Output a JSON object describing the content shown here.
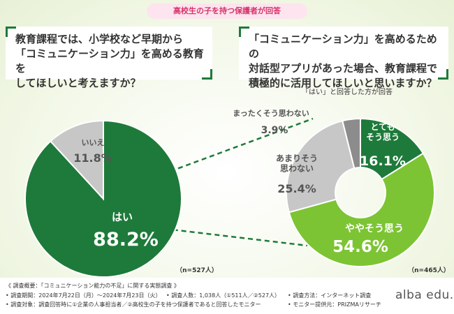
{
  "banner": "高校生の子を持つ保護者が回答",
  "q1": "教育課程では、小学校など早期から\n「コミュニケーション力」を高める教育を\nしてほしいと考えますか？",
  "q2": "「コミュニケーション力」を高めるための\n対話型アプリがあった場合、教育課程で\n積極的に活用してほしいと思いますか？",
  "subnote": "「はい」と回答した方が回答",
  "colors": {
    "dark_green": "#1e7a3a",
    "light_green": "#7cc433",
    "gray": "#c7c7c7",
    "dark_gray": "#8c8c8c",
    "banner_text": "#d6336c"
  },
  "chart_data": [
    {
      "type": "pie",
      "title": "教育課程では、小学校など早期から「コミュニケーション力」を高める教育をしてほしいと考えますか？",
      "n_label": "（n=527人）",
      "slices": [
        {
          "label": "はい",
          "value": 88.2,
          "display": "88.2%"
        },
        {
          "label": "いいえ",
          "value": 11.8,
          "display": "11.8%"
        }
      ]
    },
    {
      "type": "pie",
      "variant": "donut",
      "title": "「コミュニケーション力」を高めるための対話型アプリがあった場合、教育課程で積極的に活用してほしいと思いますか？",
      "n_label": "（n=465人）",
      "slices": [
        {
          "label": "とても\nそう思う",
          "value": 16.1,
          "display": "16.1%"
        },
        {
          "label": "ややそう思う",
          "value": 54.6,
          "display": "54.6%"
        },
        {
          "label": "あまりそう\n思わない",
          "value": 25.4,
          "display": "25.4%"
        },
        {
          "label": "まったくそう思わない",
          "value": 3.9,
          "display": "3.9%"
        }
      ]
    }
  ],
  "footer": {
    "title": "《 調査概要：「コミュニケーション能力の不足」に関する実態調査 》",
    "period": "• 調査期間：2024年7月22日（月）～2024年7月23日（火）",
    "respondents": "• 調査人数：1,038人（①511人／②527人）",
    "method": "• 調査方法：インターネット調査",
    "target": "• 調査対象：調査回答時に①企業の人事担当者／②高校生の子を持つ保護者であると回答したモニター",
    "monitor": "• モニター提供元：PRIZMAリサーチ"
  },
  "logo": "alba edu."
}
